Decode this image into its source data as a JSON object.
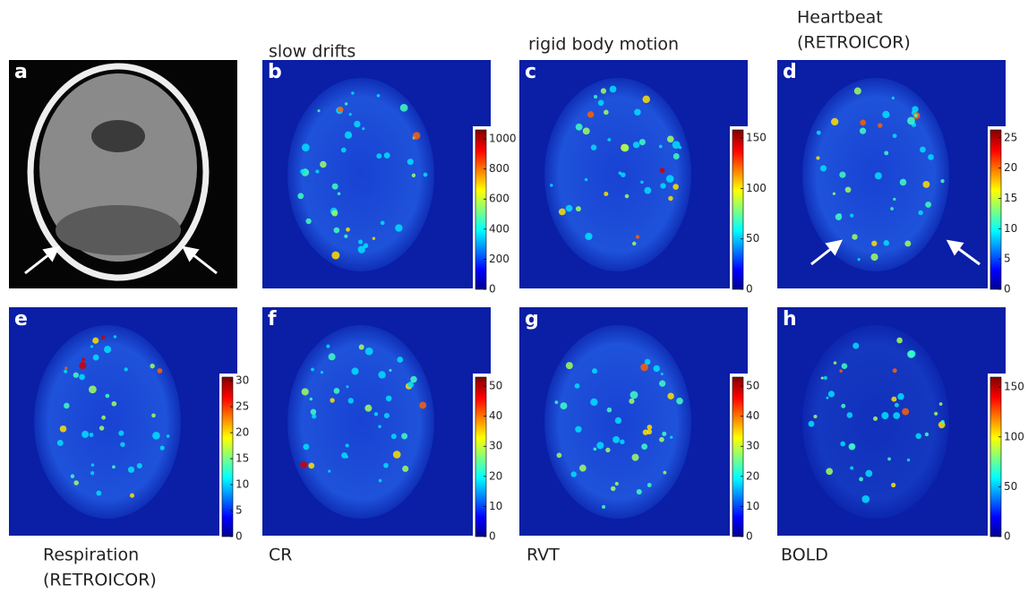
{
  "panels": [
    {
      "letter": "a"
    },
    {
      "letter": "b",
      "title": [
        "slow drifts"
      ],
      "colorbar": {
        "lim": [
          0,
          1060
        ],
        "ticks": [
          0,
          200,
          400,
          600,
          800,
          1000
        ]
      }
    },
    {
      "letter": "c",
      "title": [
        "rigid body motion"
      ],
      "colorbar": {
        "lim": [
          0,
          158
        ],
        "ticks": [
          0,
          50,
          100,
          150
        ]
      }
    },
    {
      "letter": "d",
      "title": [
        "Heartbeat",
        "(RETROICOR)"
      ],
      "colorbar": {
        "lim": [
          0,
          26.3
        ],
        "ticks": [
          0,
          5,
          10,
          15,
          20,
          25
        ]
      }
    },
    {
      "letter": "e",
      "caption": [
        "Respiration",
        "(RETROICOR)"
      ],
      "colorbar": {
        "lim": [
          0,
          30.7
        ],
        "ticks": [
          0,
          5,
          10,
          15,
          20,
          25,
          30
        ]
      }
    },
    {
      "letter": "f",
      "caption": [
        "CR"
      ],
      "colorbar": {
        "lim": [
          0,
          53
        ],
        "ticks": [
          0,
          10,
          20,
          30,
          40,
          50
        ]
      }
    },
    {
      "letter": "g",
      "caption": [
        "RVT"
      ],
      "colorbar": {
        "lim": [
          0,
          53
        ],
        "ticks": [
          0,
          10,
          20,
          30,
          40,
          50
        ]
      }
    },
    {
      "letter": "h",
      "caption": [
        "BOLD"
      ],
      "colorbar": {
        "lim": [
          0,
          160
        ],
        "ticks": [
          0,
          50,
          100,
          150
        ]
      }
    }
  ]
}
